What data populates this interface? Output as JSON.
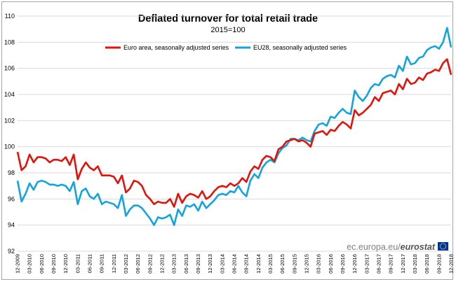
{
  "chart_data": {
    "type": "line",
    "title": "Deflated turnover for total retail trade",
    "subtitle": "2015=100",
    "xlabel": "",
    "ylabel": "",
    "ylim": [
      92,
      110
    ],
    "yticks": [
      92,
      94,
      96,
      98,
      100,
      102,
      104,
      106,
      108,
      110
    ],
    "grid": true,
    "legend_position": "top",
    "x": [
      "12-2009",
      "01-2010",
      "02-2010",
      "03-2010",
      "04-2010",
      "05-2010",
      "06-2010",
      "07-2010",
      "08-2010",
      "09-2010",
      "10-2010",
      "11-2010",
      "12-2010",
      "01-2011",
      "02-2011",
      "03-2011",
      "04-2011",
      "05-2011",
      "06-2011",
      "07-2011",
      "08-2011",
      "09-2011",
      "10-2011",
      "11-2011",
      "12-2011",
      "01-2012",
      "02-2012",
      "03-2012",
      "04-2012",
      "05-2012",
      "06-2012",
      "07-2012",
      "08-2012",
      "09-2012",
      "10-2012",
      "11-2012",
      "12-2012",
      "01-2013",
      "02-2013",
      "03-2013",
      "04-2013",
      "05-2013",
      "06-2013",
      "07-2013",
      "08-2013",
      "09-2013",
      "10-2013",
      "11-2013",
      "12-2013",
      "01-2014",
      "02-2014",
      "03-2014",
      "04-2014",
      "05-2014",
      "06-2014",
      "07-2014",
      "08-2014",
      "09-2014",
      "10-2014",
      "11-2014",
      "12-2014",
      "01-2015",
      "02-2015",
      "03-2015",
      "04-2015",
      "05-2015",
      "06-2015",
      "07-2015",
      "08-2015",
      "09-2015",
      "10-2015",
      "11-2015",
      "12-2015",
      "01-2016",
      "02-2016",
      "03-2016",
      "04-2016",
      "05-2016",
      "06-2016",
      "07-2016",
      "08-2016",
      "09-2016",
      "10-2016",
      "11-2016",
      "12-2016",
      "01-2017",
      "02-2017",
      "03-2017",
      "04-2017",
      "05-2017",
      "06-2017",
      "07-2017",
      "08-2017",
      "09-2017",
      "10-2017",
      "11-2017",
      "12-2017",
      "01-2018",
      "02-2018",
      "03-2018",
      "04-2018",
      "05-2018",
      "06-2018",
      "07-2018",
      "08-2018",
      "09-2018",
      "10-2018",
      "11-2018",
      "12-2018"
    ],
    "xtick_labels": [
      "12-2009",
      "03-2010",
      "06-2010",
      "09-2010",
      "12-2010",
      "03-2011",
      "06-2011",
      "09-2011",
      "12-2011",
      "03-2012",
      "06-2012",
      "09-2012",
      "12-2012",
      "03-2013",
      "06-2013",
      "09-2013",
      "12-2013",
      "03-2014",
      "06-2014",
      "09-2014",
      "12-2014",
      "03-2015",
      "06-2015",
      "09-2015",
      "12-2015",
      "03-2016",
      "06-2016",
      "09-2016",
      "12-2016",
      "03-2017",
      "06-2017",
      "09-2017",
      "12-2017",
      "03-2018",
      "06-2018",
      "09-2018",
      "12-2018"
    ],
    "series": [
      {
        "name": "Euro area, seasonally adjusted series",
        "color": "#e3120b",
        "values": [
          99.6,
          98.2,
          98.5,
          99.4,
          98.8,
          99.2,
          99.2,
          99.1,
          98.8,
          99.0,
          99.0,
          98.9,
          99.2,
          98.6,
          99.4,
          97.5,
          98.3,
          98.8,
          98.4,
          98.2,
          98.5,
          97.8,
          97.8,
          97.8,
          97.7,
          97.2,
          97.8,
          96.5,
          96.8,
          97.4,
          97.3,
          97.0,
          96.3,
          96.0,
          95.6,
          95.8,
          95.7,
          95.7,
          96.0,
          95.4,
          96.4,
          95.7,
          96.2,
          96.4,
          96.3,
          96.1,
          96.6,
          96.0,
          96.2,
          96.6,
          96.9,
          97.0,
          96.9,
          97.2,
          97.0,
          97.2,
          97.6,
          97.3,
          98.1,
          98.5,
          98.3,
          99.0,
          99.3,
          99.2,
          98.9,
          99.8,
          100.0,
          100.4,
          100.5,
          100.6,
          100.4,
          100.5,
          100.3,
          100.0,
          101.0,
          101.1,
          101.2,
          100.9,
          101.3,
          101.2,
          101.6,
          101.9,
          101.7,
          101.4,
          102.8,
          102.4,
          102.6,
          102.9,
          103.2,
          103.8,
          103.5,
          104.1,
          104.2,
          104.3,
          104.0,
          104.8,
          104.4,
          105.2,
          104.8,
          104.9,
          105.3,
          105.1,
          105.6,
          105.7,
          105.9,
          105.8,
          106.4,
          106.7,
          105.5
        ]
      },
      {
        "name": "EU28, seasonally adjusted series",
        "color": "#12a4dc",
        "values": [
          97.4,
          95.8,
          96.4,
          97.2,
          96.7,
          97.3,
          97.4,
          97.3,
          97.1,
          97.1,
          97.0,
          97.1,
          97.0,
          96.6,
          97.3,
          95.6,
          96.6,
          96.8,
          96.2,
          96.0,
          96.4,
          95.6,
          95.8,
          95.7,
          95.6,
          95.3,
          96.3,
          94.7,
          95.2,
          95.5,
          95.5,
          95.3,
          94.9,
          94.5,
          94.0,
          94.6,
          94.5,
          94.6,
          94.8,
          94.0,
          95.2,
          94.7,
          95.5,
          95.4,
          95.6,
          95.1,
          95.8,
          95.3,
          95.6,
          95.9,
          96.3,
          96.4,
          96.3,
          96.6,
          96.5,
          97.0,
          96.5,
          96.2,
          97.4,
          97.9,
          97.6,
          98.4,
          98.8,
          99.0,
          98.8,
          99.5,
          99.9,
          100.1,
          100.6,
          100.6,
          100.5,
          100.7,
          100.5,
          100.4,
          101.2,
          101.7,
          101.8,
          101.6,
          102.3,
          102.2,
          102.6,
          102.9,
          102.6,
          102.5,
          104.3,
          103.8,
          103.5,
          103.9,
          104.5,
          104.8,
          104.7,
          105.2,
          105.4,
          105.5,
          105.3,
          106.2,
          105.8,
          106.9,
          106.3,
          106.4,
          106.8,
          106.9,
          107.4,
          107.6,
          107.7,
          107.5,
          108.0,
          109.1,
          107.6
        ]
      }
    ]
  },
  "footer": {
    "source_prefix": "ec.europa.eu/",
    "source_brand": "eurostat",
    "logo_color": "#003399",
    "logo_star_color": "#ffcc00"
  }
}
